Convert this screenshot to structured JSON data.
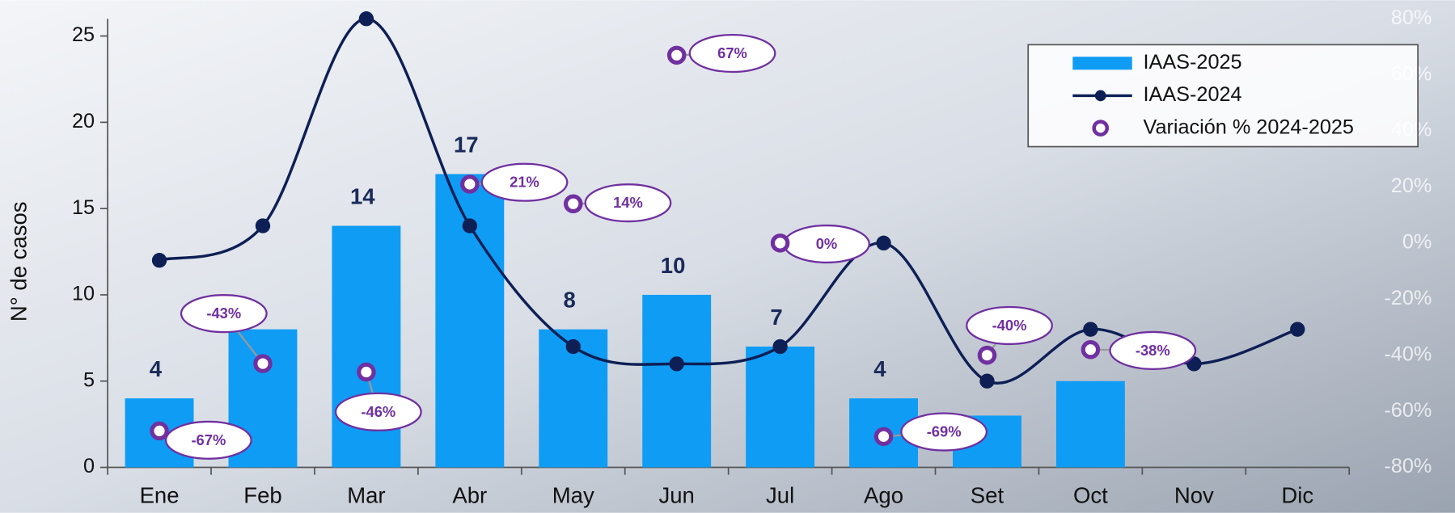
{
  "chart_data": {
    "type": "bar",
    "y_label": "N° de casos",
    "categories": [
      "Ene",
      "Feb",
      "Mar",
      "Abr",
      "May",
      "Jun",
      "Jul",
      "Ago",
      "Set",
      "Oct",
      "Nov",
      "Dic"
    ],
    "ylim": [
      0,
      26
    ],
    "yticks": [
      0,
      5,
      10,
      15,
      20,
      25
    ],
    "y2lim": [
      -80,
      80
    ],
    "y2ticks": [
      {
        "value": -80,
        "label": "-80%"
      },
      {
        "value": -60,
        "label": "-60%"
      },
      {
        "value": -40,
        "label": "-40%"
      },
      {
        "value": -20,
        "label": "-20%"
      },
      {
        "value": 0,
        "label": "0%"
      },
      {
        "value": 20,
        "label": "20%"
      },
      {
        "value": 40,
        "label": "40%"
      },
      {
        "value": 60,
        "label": "60%"
      },
      {
        "value": 80,
        "label": "80%"
      }
    ],
    "legend": "upper right",
    "series": [
      {
        "name": "IAAS-2025",
        "type": "bar",
        "color": "#0f9cf5",
        "values": [
          4,
          8,
          14,
          17,
          8,
          10,
          7,
          4,
          3,
          5,
          null,
          null
        ],
        "value_labels": [
          "4",
          null,
          "14",
          "17",
          "8",
          "10",
          "7",
          "4",
          null,
          null,
          null,
          null
        ]
      },
      {
        "name": "IAAS-2024",
        "type": "line",
        "color": "#0d1f55",
        "values": [
          12,
          14,
          26,
          14,
          7,
          6,
          7,
          13,
          5,
          8,
          6,
          8
        ]
      },
      {
        "name": "Variación % 2024-2025",
        "type": "scatter",
        "axis": "y2",
        "color": "#7030a0",
        "values": [
          -67,
          -43,
          -46,
          21,
          14,
          67,
          0,
          -69,
          -40,
          -38,
          null,
          null
        ],
        "value_labels": [
          "-67%",
          "-43%",
          "-46%",
          "21%",
          "14%",
          "67%",
          "0%",
          "-69%",
          "-40%",
          "-38%",
          null,
          null
        ]
      }
    ]
  }
}
